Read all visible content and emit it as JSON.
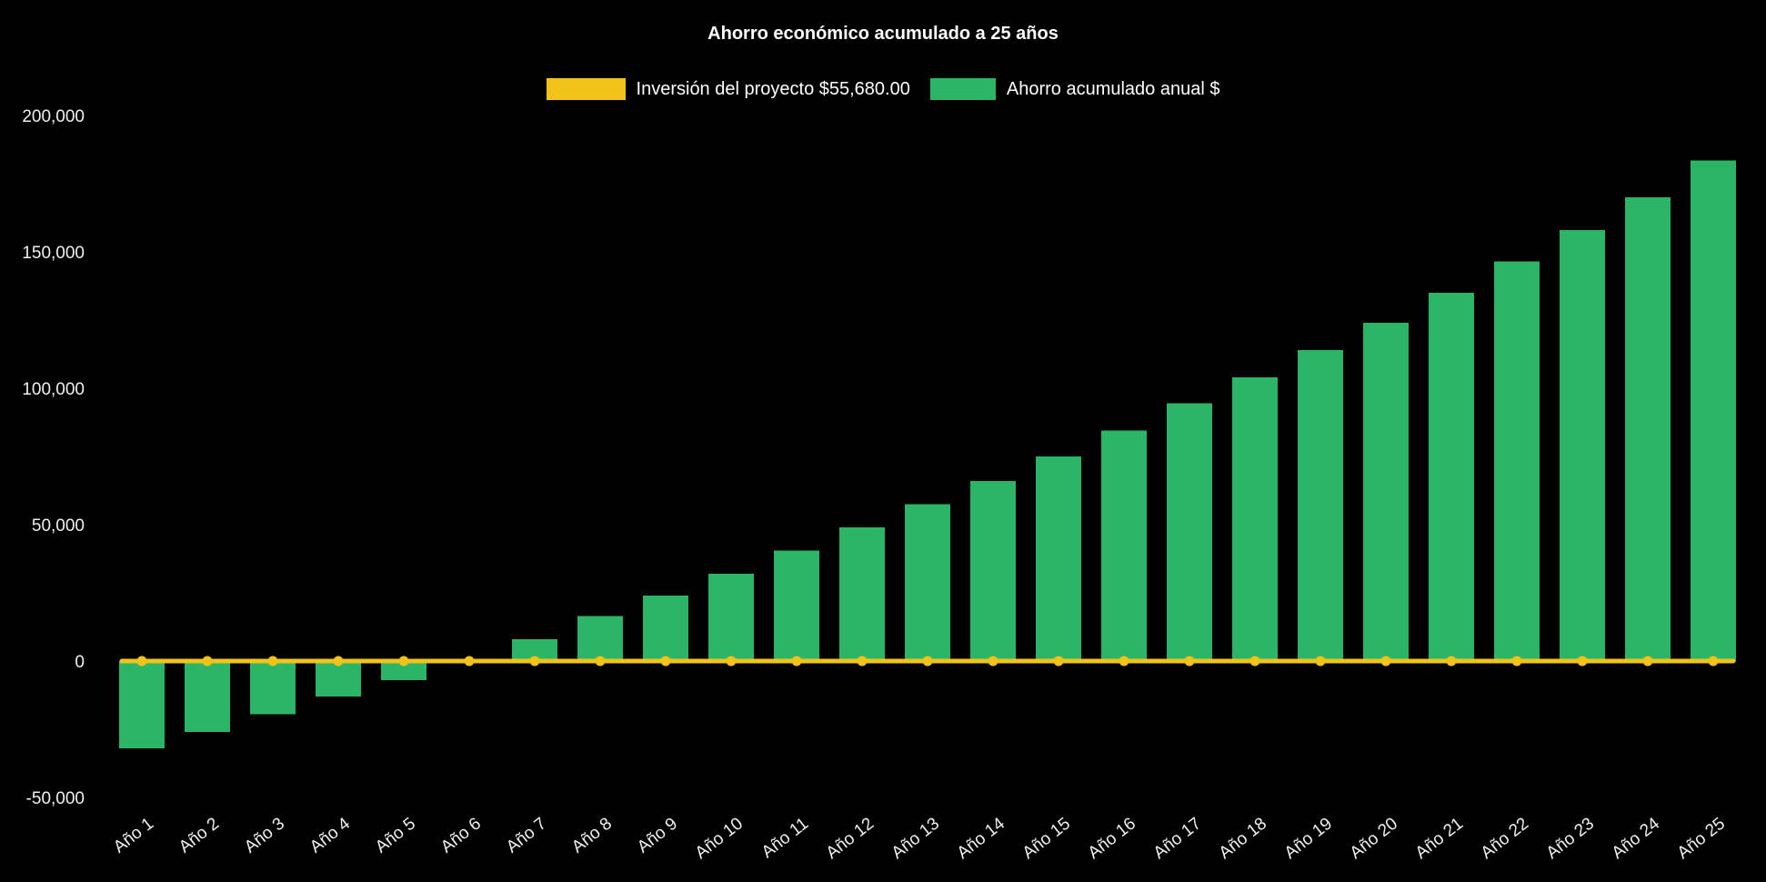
{
  "page": {
    "background": "#000000"
  },
  "chart_data": {
    "type": "bar",
    "title": "Ahorro económico acumulado a 25 años",
    "categories": [
      "Año 1",
      "Año 2",
      "Año 3",
      "Año 4",
      "Año 5",
      "Año 6",
      "Año 7",
      "Año 8",
      "Año 9",
      "Año 10",
      "Año 11",
      "Año 12",
      "Año 13",
      "Año 14",
      "Año 15",
      "Año 16",
      "Año 17",
      "Año 18",
      "Año 19",
      "Año 20",
      "Año 21",
      "Año 22",
      "Año 23",
      "Año 24",
      "Año 25"
    ],
    "series": [
      {
        "name": "Ahorro acumulado anual $",
        "type": "bar",
        "color": "#2cb566",
        "values": [
          -32000,
          -26000,
          -19500,
          -13000,
          -7000,
          500,
          8000,
          16500,
          24000,
          32000,
          40500,
          49000,
          57500,
          66000,
          75000,
          84500,
          94500,
          104000,
          114000,
          124000,
          135000,
          146500,
          158000,
          170000,
          183500
        ]
      },
      {
        "name": "Inversión del proyecto $55,680.00",
        "type": "line",
        "color": "#f3c21b",
        "values": [
          0,
          0,
          0,
          0,
          0,
          0,
          0,
          0,
          0,
          0,
          0,
          0,
          0,
          0,
          0,
          0,
          0,
          0,
          0,
          0,
          0,
          0,
          0,
          0,
          0
        ]
      }
    ],
    "y_ticks": [
      200000,
      150000,
      100000,
      50000,
      0,
      -50000
    ],
    "ylim": [
      -52000,
      212000
    ],
    "xlabel": "",
    "ylabel": "",
    "grid": false,
    "legend_position": "top",
    "axis_text_color": "#f0f0f0",
    "title_color": "#ffffff"
  }
}
